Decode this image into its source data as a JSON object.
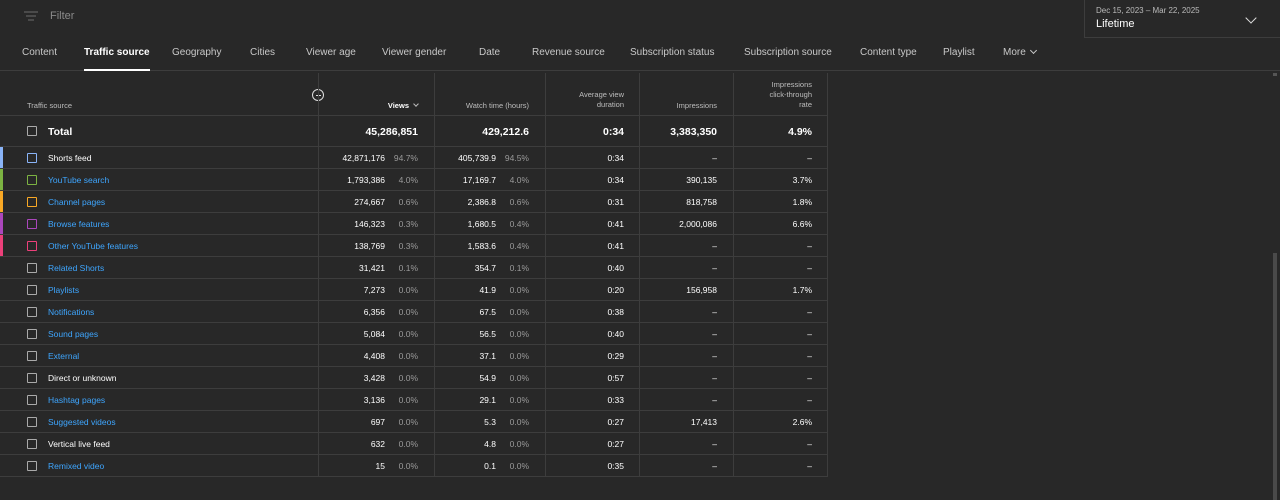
{
  "filter": {
    "placeholder": "Filter"
  },
  "date": {
    "range": "Dec 15, 2023 – Mar 22, 2025",
    "label": "Lifetime"
  },
  "tabs": [
    "Content",
    "Traffic source",
    "Geography",
    "Cities",
    "Viewer age",
    "Viewer gender",
    "Date",
    "Revenue source",
    "Subscription status",
    "Subscription source",
    "Content type",
    "Playlist",
    "More"
  ],
  "active_tab": "Traffic source",
  "columns": {
    "source": "Traffic source",
    "views": "Views",
    "watch_time": "Watch time (hours)",
    "avg_duration": [
      "Average view",
      "duration"
    ],
    "impressions": "Impressions",
    "ctr": [
      "Impressions",
      "click-through",
      "rate"
    ]
  },
  "total": {
    "label": "Total",
    "views": "45,286,851",
    "watch": "429,212.6",
    "avg": "0:34",
    "impressions": "3,383,350",
    "ctr": "4.9%"
  },
  "rows": [
    {
      "name": "Shorts feed",
      "link": false,
      "color": "#8ab4f8",
      "views": "42,871,176",
      "views_pct": "94.7%",
      "watch": "405,739.9",
      "watch_pct": "94.5%",
      "avg": "0:34",
      "impressions": "–",
      "ctr": "–"
    },
    {
      "name": "YouTube search",
      "link": true,
      "color": "#7cb342",
      "views": "1,793,386",
      "views_pct": "4.0%",
      "watch": "17,169.7",
      "watch_pct": "4.0%",
      "avg": "0:34",
      "impressions": "390,135",
      "ctr": "3.7%"
    },
    {
      "name": "Channel pages",
      "link": true,
      "color": "#f9a825",
      "views": "274,667",
      "views_pct": "0.6%",
      "watch": "2,386.8",
      "watch_pct": "0.6%",
      "avg": "0:31",
      "impressions": "818,758",
      "ctr": "1.8%"
    },
    {
      "name": "Browse features",
      "link": true,
      "color": "#ab47bc",
      "views": "146,323",
      "views_pct": "0.3%",
      "watch": "1,680.5",
      "watch_pct": "0.4%",
      "avg": "0:41",
      "impressions": "2,000,086",
      "ctr": "6.6%"
    },
    {
      "name": "Other YouTube features",
      "link": true,
      "color": "#ec407a",
      "views": "138,769",
      "views_pct": "0.3%",
      "watch": "1,583.6",
      "watch_pct": "0.4%",
      "avg": "0:41",
      "impressions": "–",
      "ctr": "–"
    },
    {
      "name": "Related Shorts",
      "link": true,
      "color": "",
      "views": "31,421",
      "views_pct": "0.1%",
      "watch": "354.7",
      "watch_pct": "0.1%",
      "avg": "0:40",
      "impressions": "–",
      "ctr": "–"
    },
    {
      "name": "Playlists",
      "link": true,
      "color": "",
      "views": "7,273",
      "views_pct": "0.0%",
      "watch": "41.9",
      "watch_pct": "0.0%",
      "avg": "0:20",
      "impressions": "156,958",
      "ctr": "1.7%"
    },
    {
      "name": "Notifications",
      "link": true,
      "color": "",
      "views": "6,356",
      "views_pct": "0.0%",
      "watch": "67.5",
      "watch_pct": "0.0%",
      "avg": "0:38",
      "impressions": "–",
      "ctr": "–"
    },
    {
      "name": "Sound pages",
      "link": true,
      "color": "",
      "views": "5,084",
      "views_pct": "0.0%",
      "watch": "56.5",
      "watch_pct": "0.0%",
      "avg": "0:40",
      "impressions": "–",
      "ctr": "–"
    },
    {
      "name": "External",
      "link": true,
      "color": "",
      "views": "4,408",
      "views_pct": "0.0%",
      "watch": "37.1",
      "watch_pct": "0.0%",
      "avg": "0:29",
      "impressions": "–",
      "ctr": "–"
    },
    {
      "name": "Direct or unknown",
      "link": false,
      "color": "",
      "views": "3,428",
      "views_pct": "0.0%",
      "watch": "54.9",
      "watch_pct": "0.0%",
      "avg": "0:57",
      "impressions": "–",
      "ctr": "–"
    },
    {
      "name": "Hashtag pages",
      "link": true,
      "color": "",
      "views": "3,136",
      "views_pct": "0.0%",
      "watch": "29.1",
      "watch_pct": "0.0%",
      "avg": "0:33",
      "impressions": "–",
      "ctr": "–"
    },
    {
      "name": "Suggested videos",
      "link": true,
      "color": "",
      "views": "697",
      "views_pct": "0.0%",
      "watch": "5.3",
      "watch_pct": "0.0%",
      "avg": "0:27",
      "impressions": "17,413",
      "ctr": "2.6%"
    },
    {
      "name": "Vertical live feed",
      "link": false,
      "color": "",
      "views": "632",
      "views_pct": "0.0%",
      "watch": "4.8",
      "watch_pct": "0.0%",
      "avg": "0:27",
      "impressions": "–",
      "ctr": "–"
    },
    {
      "name": "Remixed video",
      "link": true,
      "color": "",
      "views": "15",
      "views_pct": "0.0%",
      "watch": "0.1",
      "watch_pct": "0.0%",
      "avg": "0:35",
      "impressions": "–",
      "ctr": "–"
    }
  ]
}
